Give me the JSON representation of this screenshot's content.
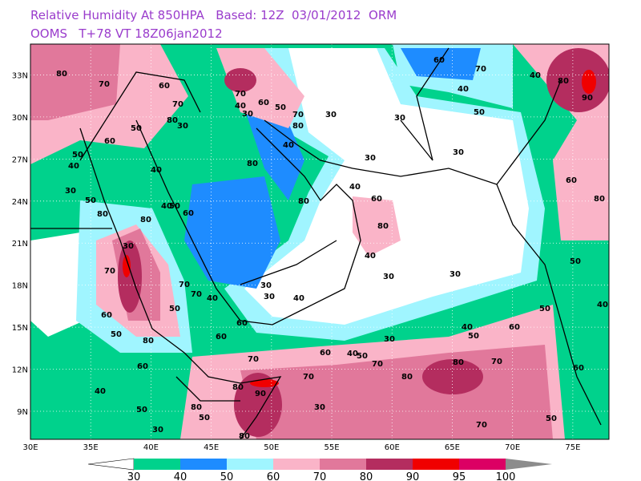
{
  "header": {
    "line1": "Relative Humidity At 850HPA   Based: 12Z  03/01/2012  ORM",
    "line2": "OOMS   T+78 VT 18Z06jan2012"
  },
  "map": {
    "lat_ticks": [
      {
        "value": 9,
        "label": "9N"
      },
      {
        "value": 12,
        "label": "12N"
      },
      {
        "value": 15,
        "label": "15N"
      },
      {
        "value": 18,
        "label": "18N"
      },
      {
        "value": 21,
        "label": "21N"
      },
      {
        "value": 24,
        "label": "24N"
      },
      {
        "value": 27,
        "label": "27N"
      },
      {
        "value": 30,
        "label": "30N"
      },
      {
        "value": 33,
        "label": "33N"
      }
    ],
    "lon_ticks": [
      {
        "value": 30,
        "label": "30E"
      },
      {
        "value": 35,
        "label": "35E"
      },
      {
        "value": 40,
        "label": "40E"
      },
      {
        "value": 45,
        "label": "45E"
      },
      {
        "value": 50,
        "label": "50E"
      },
      {
        "value": 55,
        "label": "55E"
      },
      {
        "value": 60,
        "label": "60E"
      },
      {
        "value": 65,
        "label": "65E"
      },
      {
        "value": 70,
        "label": "70E"
      },
      {
        "value": 75,
        "label": "75E"
      }
    ],
    "lonlim": [
      30,
      78
    ],
    "latlim": [
      7,
      35.2
    ],
    "contour_labels": [
      80,
      70,
      60,
      70,
      80,
      30,
      50,
      60,
      50,
      40,
      40,
      30,
      50,
      60,
      50,
      40,
      80,
      80,
      30,
      70,
      60,
      50,
      70,
      50,
      70,
      40,
      60,
      60,
      30,
      30,
      40,
      70,
      80,
      60,
      40,
      50,
      30,
      80,
      50,
      80,
      90,
      80,
      70,
      60,
      40,
      50,
      70,
      80,
      80,
      70,
      70,
      30,
      30,
      40,
      50,
      60,
      50,
      40,
      50,
      60,
      50,
      30,
      30,
      30,
      30,
      30,
      30,
      60,
      70,
      40,
      50,
      40,
      80,
      90,
      60,
      80,
      80,
      60,
      40,
      40,
      80,
      80,
      60,
      50,
      70,
      80,
      30,
      40,
      70,
      40
    ]
  },
  "colorbar": {
    "levels": [
      30,
      40,
      50,
      60,
      70,
      80,
      90,
      95,
      100
    ],
    "colors": [
      "#00d28c",
      "#1e8cff",
      "#a0f5ff",
      "#fab4c8",
      "#e1789b",
      "#b42d5f",
      "#f00000",
      "#dc0064"
    ],
    "low_color": "#ffffff",
    "high_color": "#8c8c8c"
  }
}
